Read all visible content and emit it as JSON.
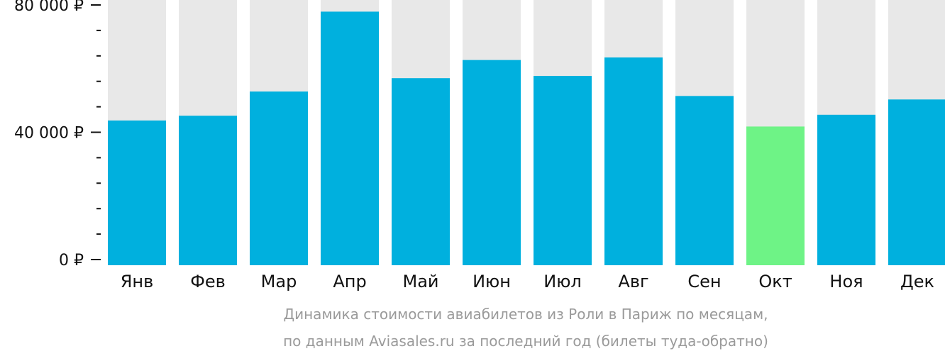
{
  "chart_data": {
    "type": "bar",
    "categories": [
      "Янв",
      "Фев",
      "Мар",
      "Апр",
      "Май",
      "Июн",
      "Июл",
      "Авг",
      "Сен",
      "Окт",
      "Ноя",
      "Дек"
    ],
    "values": [
      43700,
      45200,
      52800,
      77900,
      57000,
      62700,
      57700,
      63500,
      51400,
      41800,
      45500,
      50300
    ],
    "highlight_index": 9,
    "ylim": [
      0,
      80000
    ],
    "yticks": [
      {
        "value": 0,
        "label": "0 ₽"
      },
      {
        "value": 40000,
        "label": "40 000 ₽"
      },
      {
        "value": 80000,
        "label": "80 000 ₽"
      }
    ],
    "minor_tick_step": 8000,
    "caption_line1": "Динамика стоимости авиабилетов из Роли в Париж по месяцам,",
    "caption_line2": "по данным Aviasales.ru за последний год (билеты туда-обратно)"
  },
  "colors": {
    "bar": "#00b0de",
    "highlight": "#6ef386",
    "track": "#e8e8e8",
    "axis": "#111111",
    "caption": "#9a9a9a"
  }
}
